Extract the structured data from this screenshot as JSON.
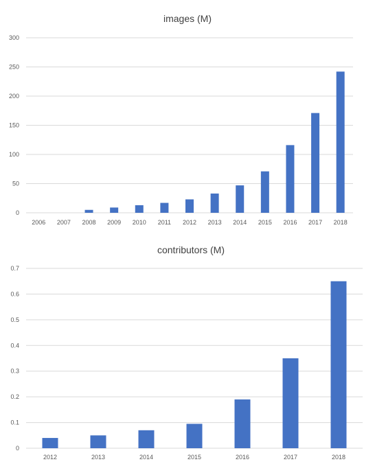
{
  "chart_data": [
    {
      "type": "bar",
      "title": "images (M)",
      "categories": [
        "2006",
        "2007",
        "2008",
        "2009",
        "2010",
        "2011",
        "2012",
        "2013",
        "2014",
        "2015",
        "2016",
        "2017",
        "2018"
      ],
      "values": [
        0,
        0,
        5,
        9,
        13,
        17,
        23,
        33,
        47,
        71,
        116,
        171,
        242
      ],
      "ylim": [
        0,
        300
      ],
      "yticks": [
        0,
        50,
        100,
        150,
        200,
        250,
        300
      ],
      "color": "#4472c4",
      "grid": true,
      "legend": "none"
    },
    {
      "type": "bar",
      "title": "contributors (M)",
      "categories": [
        "2012",
        "2013",
        "2014",
        "2015",
        "2016",
        "2017",
        "2018"
      ],
      "values": [
        0.04,
        0.05,
        0.07,
        0.095,
        0.19,
        0.35,
        0.65
      ],
      "ylim": [
        0,
        0.7
      ],
      "yticks": [
        0,
        0.1,
        0.2,
        0.3,
        0.4,
        0.5,
        0.6,
        0.7
      ],
      "color": "#4472c4",
      "grid": true,
      "legend": "none"
    }
  ]
}
